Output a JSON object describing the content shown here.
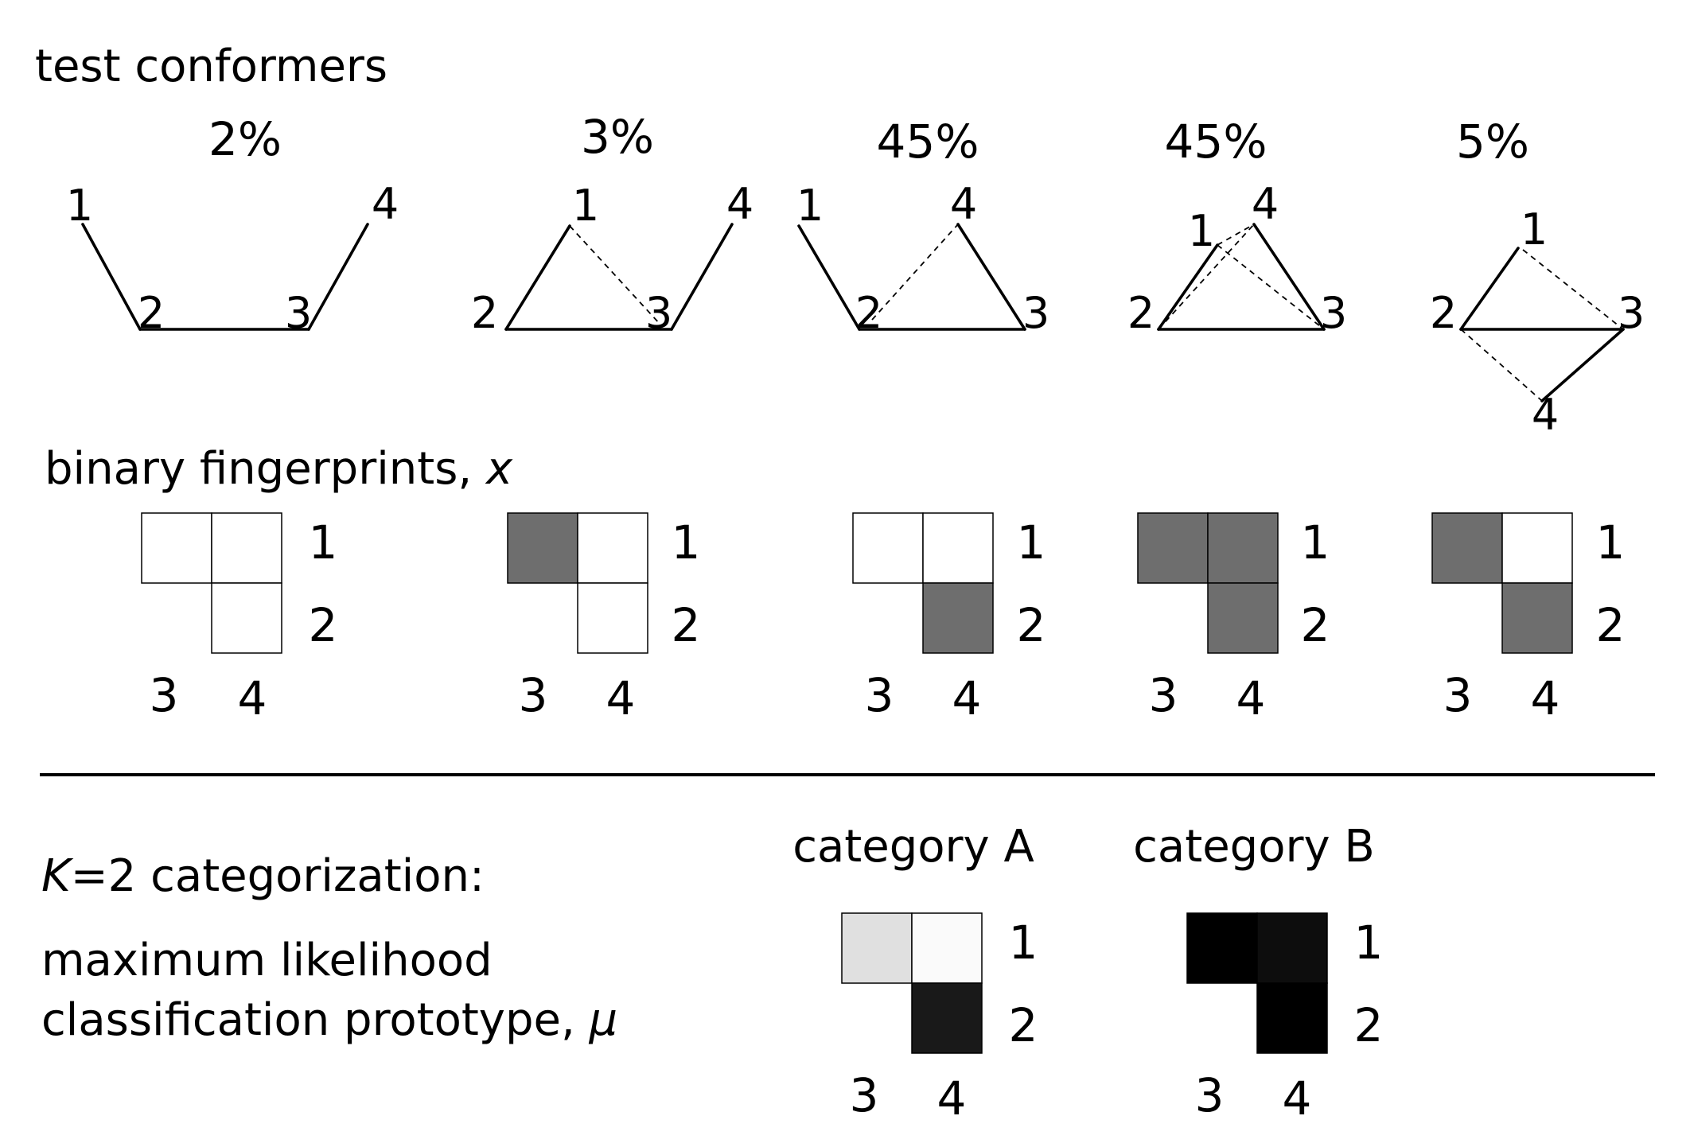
{
  "headings": {
    "test_conformers": "test conformers",
    "fingerprints": "binary fingerprints, ",
    "fingerprints_symbol": "x",
    "categorization_k": "K",
    "categorization": "=2 categorization:",
    "ml_line1": "maximum likelihood",
    "ml_line2": "classification prototype, ",
    "ml_symbol": "μ"
  },
  "conformers": [
    {
      "percent": "2%",
      "atom_labels": [
        "1",
        "2",
        "3",
        "4"
      ]
    },
    {
      "percent": "3%",
      "atom_labels": [
        "1",
        "2",
        "3",
        "4"
      ]
    },
    {
      "percent": "45%",
      "atom_labels": [
        "1",
        "2",
        "3",
        "4"
      ]
    },
    {
      "percent": "45%",
      "atom_labels": [
        "1",
        "2",
        "3",
        "4"
      ]
    },
    {
      "percent": "5%",
      "atom_labels": [
        "1",
        "2",
        "3",
        "4"
      ]
    }
  ],
  "fingerprints": [
    {
      "cells": {
        "r1c3": 0,
        "r1c4": 0,
        "r2c4": 0
      },
      "row_labels": [
        "1",
        "2"
      ],
      "col_labels": [
        "3",
        "4"
      ]
    },
    {
      "cells": {
        "r1c3": 1,
        "r1c4": 0,
        "r2c4": 0
      },
      "row_labels": [
        "1",
        "2"
      ],
      "col_labels": [
        "3",
        "4"
      ]
    },
    {
      "cells": {
        "r1c3": 0,
        "r1c4": 0,
        "r2c4": 1
      },
      "row_labels": [
        "1",
        "2"
      ],
      "col_labels": [
        "3",
        "4"
      ]
    },
    {
      "cells": {
        "r1c3": 1,
        "r1c4": 1,
        "r2c4": 1
      },
      "row_labels": [
        "1",
        "2"
      ],
      "col_labels": [
        "3",
        "4"
      ]
    },
    {
      "cells": {
        "r1c3": 1,
        "r1c4": 0,
        "r2c4": 1
      },
      "row_labels": [
        "1",
        "2"
      ],
      "col_labels": [
        "3",
        "4"
      ]
    }
  ],
  "categories": [
    {
      "label": "category A",
      "cells": {
        "r1c3": 0.12,
        "r1c4": 0.02,
        "r2c4": 0.9
      },
      "row_labels": [
        "1",
        "2"
      ],
      "col_labels": [
        "3",
        "4"
      ]
    },
    {
      "label": "category B",
      "cells": {
        "r1c3": 1.0,
        "r1c4": 0.95,
        "r2c4": 1.0
      },
      "row_labels": [
        "1",
        "2"
      ],
      "col_labels": [
        "3",
        "4"
      ]
    }
  ],
  "colors": {
    "fingerprint_on": "#6e6e6e",
    "fingerprint_off": "#ffffff",
    "line": "#000000"
  }
}
